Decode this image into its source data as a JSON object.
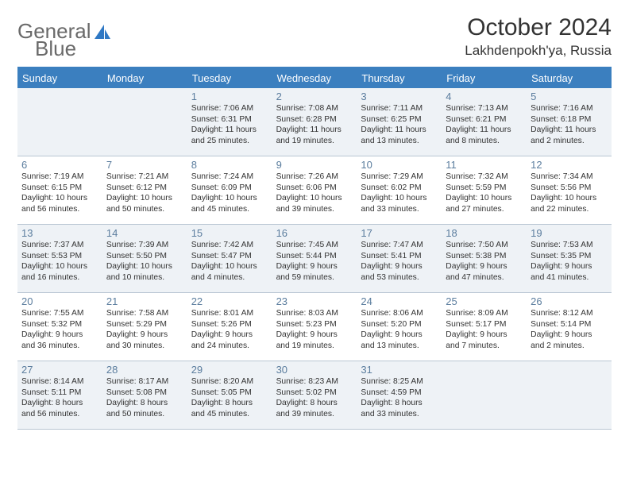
{
  "brand": {
    "general": "General",
    "blue": "Blue"
  },
  "header": {
    "title": "October 2024",
    "location": "Lakhdenpokh'ya, Russia"
  },
  "colors": {
    "accent": "#3b7fbf",
    "shaded_bg": "#eef2f6",
    "border": "#b9c6d3",
    "daynum": "#5b7d9e"
  },
  "dayNames": [
    "Sunday",
    "Monday",
    "Tuesday",
    "Wednesday",
    "Thursday",
    "Friday",
    "Saturday"
  ],
  "weeks": [
    [
      {
        "shaded": true
      },
      {
        "shaded": true
      },
      {
        "n": "1",
        "shaded": true,
        "sr": "Sunrise: 7:06 AM",
        "ss": "Sunset: 6:31 PM",
        "dl": "Daylight: 11 hours and 25 minutes."
      },
      {
        "n": "2",
        "shaded": true,
        "sr": "Sunrise: 7:08 AM",
        "ss": "Sunset: 6:28 PM",
        "dl": "Daylight: 11 hours and 19 minutes."
      },
      {
        "n": "3",
        "shaded": true,
        "sr": "Sunrise: 7:11 AM",
        "ss": "Sunset: 6:25 PM",
        "dl": "Daylight: 11 hours and 13 minutes."
      },
      {
        "n": "4",
        "shaded": true,
        "sr": "Sunrise: 7:13 AM",
        "ss": "Sunset: 6:21 PM",
        "dl": "Daylight: 11 hours and 8 minutes."
      },
      {
        "n": "5",
        "shaded": true,
        "sr": "Sunrise: 7:16 AM",
        "ss": "Sunset: 6:18 PM",
        "dl": "Daylight: 11 hours and 2 minutes."
      }
    ],
    [
      {
        "n": "6",
        "sr": "Sunrise: 7:19 AM",
        "ss": "Sunset: 6:15 PM",
        "dl": "Daylight: 10 hours and 56 minutes."
      },
      {
        "n": "7",
        "sr": "Sunrise: 7:21 AM",
        "ss": "Sunset: 6:12 PM",
        "dl": "Daylight: 10 hours and 50 minutes."
      },
      {
        "n": "8",
        "sr": "Sunrise: 7:24 AM",
        "ss": "Sunset: 6:09 PM",
        "dl": "Daylight: 10 hours and 45 minutes."
      },
      {
        "n": "9",
        "sr": "Sunrise: 7:26 AM",
        "ss": "Sunset: 6:06 PM",
        "dl": "Daylight: 10 hours and 39 minutes."
      },
      {
        "n": "10",
        "sr": "Sunrise: 7:29 AM",
        "ss": "Sunset: 6:02 PM",
        "dl": "Daylight: 10 hours and 33 minutes."
      },
      {
        "n": "11",
        "sr": "Sunrise: 7:32 AM",
        "ss": "Sunset: 5:59 PM",
        "dl": "Daylight: 10 hours and 27 minutes."
      },
      {
        "n": "12",
        "sr": "Sunrise: 7:34 AM",
        "ss": "Sunset: 5:56 PM",
        "dl": "Daylight: 10 hours and 22 minutes."
      }
    ],
    [
      {
        "n": "13",
        "shaded": true,
        "sr": "Sunrise: 7:37 AM",
        "ss": "Sunset: 5:53 PM",
        "dl": "Daylight: 10 hours and 16 minutes."
      },
      {
        "n": "14",
        "shaded": true,
        "sr": "Sunrise: 7:39 AM",
        "ss": "Sunset: 5:50 PM",
        "dl": "Daylight: 10 hours and 10 minutes."
      },
      {
        "n": "15",
        "shaded": true,
        "sr": "Sunrise: 7:42 AM",
        "ss": "Sunset: 5:47 PM",
        "dl": "Daylight: 10 hours and 4 minutes."
      },
      {
        "n": "16",
        "shaded": true,
        "sr": "Sunrise: 7:45 AM",
        "ss": "Sunset: 5:44 PM",
        "dl": "Daylight: 9 hours and 59 minutes."
      },
      {
        "n": "17",
        "shaded": true,
        "sr": "Sunrise: 7:47 AM",
        "ss": "Sunset: 5:41 PM",
        "dl": "Daylight: 9 hours and 53 minutes."
      },
      {
        "n": "18",
        "shaded": true,
        "sr": "Sunrise: 7:50 AM",
        "ss": "Sunset: 5:38 PM",
        "dl": "Daylight: 9 hours and 47 minutes."
      },
      {
        "n": "19",
        "shaded": true,
        "sr": "Sunrise: 7:53 AM",
        "ss": "Sunset: 5:35 PM",
        "dl": "Daylight: 9 hours and 41 minutes."
      }
    ],
    [
      {
        "n": "20",
        "sr": "Sunrise: 7:55 AM",
        "ss": "Sunset: 5:32 PM",
        "dl": "Daylight: 9 hours and 36 minutes."
      },
      {
        "n": "21",
        "sr": "Sunrise: 7:58 AM",
        "ss": "Sunset: 5:29 PM",
        "dl": "Daylight: 9 hours and 30 minutes."
      },
      {
        "n": "22",
        "sr": "Sunrise: 8:01 AM",
        "ss": "Sunset: 5:26 PM",
        "dl": "Daylight: 9 hours and 24 minutes."
      },
      {
        "n": "23",
        "sr": "Sunrise: 8:03 AM",
        "ss": "Sunset: 5:23 PM",
        "dl": "Daylight: 9 hours and 19 minutes."
      },
      {
        "n": "24",
        "sr": "Sunrise: 8:06 AM",
        "ss": "Sunset: 5:20 PM",
        "dl": "Daylight: 9 hours and 13 minutes."
      },
      {
        "n": "25",
        "sr": "Sunrise: 8:09 AM",
        "ss": "Sunset: 5:17 PM",
        "dl": "Daylight: 9 hours and 7 minutes."
      },
      {
        "n": "26",
        "sr": "Sunrise: 8:12 AM",
        "ss": "Sunset: 5:14 PM",
        "dl": "Daylight: 9 hours and 2 minutes."
      }
    ],
    [
      {
        "n": "27",
        "shaded": true,
        "sr": "Sunrise: 8:14 AM",
        "ss": "Sunset: 5:11 PM",
        "dl": "Daylight: 8 hours and 56 minutes."
      },
      {
        "n": "28",
        "shaded": true,
        "sr": "Sunrise: 8:17 AM",
        "ss": "Sunset: 5:08 PM",
        "dl": "Daylight: 8 hours and 50 minutes."
      },
      {
        "n": "29",
        "shaded": true,
        "sr": "Sunrise: 8:20 AM",
        "ss": "Sunset: 5:05 PM",
        "dl": "Daylight: 8 hours and 45 minutes."
      },
      {
        "n": "30",
        "shaded": true,
        "sr": "Sunrise: 8:23 AM",
        "ss": "Sunset: 5:02 PM",
        "dl": "Daylight: 8 hours and 39 minutes."
      },
      {
        "n": "31",
        "shaded": true,
        "sr": "Sunrise: 8:25 AM",
        "ss": "Sunset: 4:59 PM",
        "dl": "Daylight: 8 hours and 33 minutes."
      },
      {
        "shaded": true
      },
      {
        "shaded": true
      }
    ]
  ]
}
